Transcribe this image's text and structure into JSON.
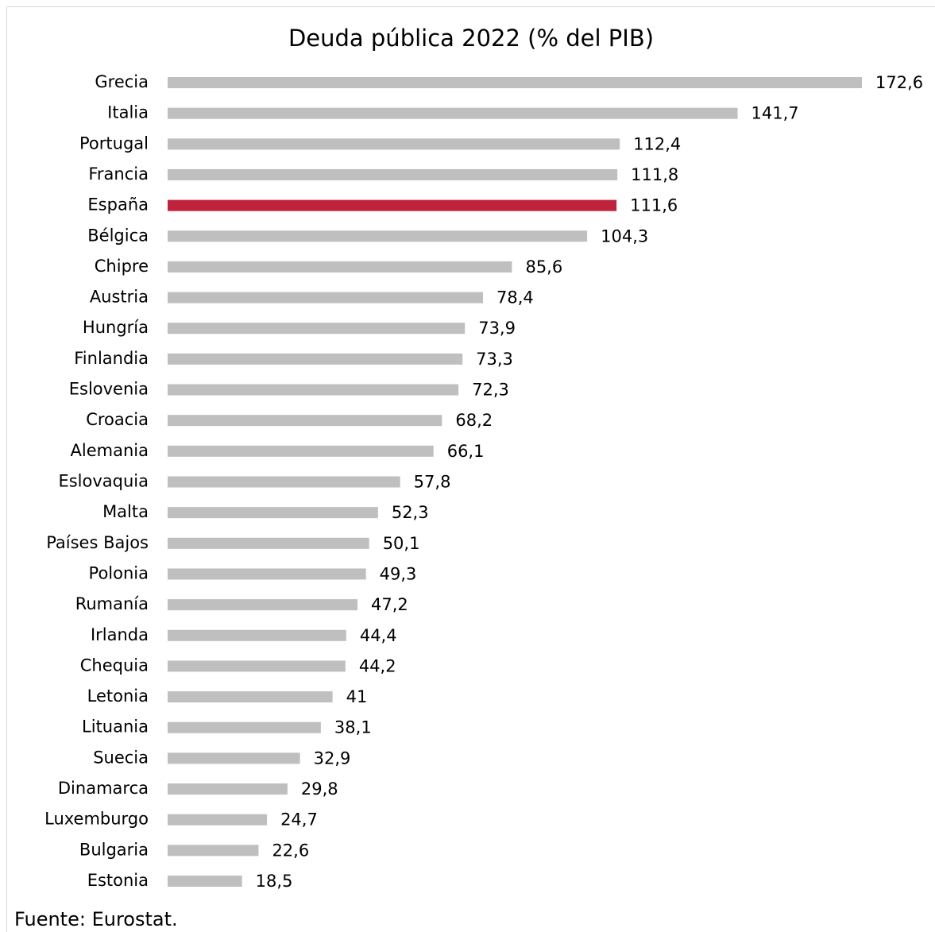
{
  "chart_data": {
    "type": "barh",
    "title": "Deuda pública 2022 (% del PIB)",
    "source": "Fuente: Eurostat.",
    "categories": [
      "Grecia",
      "Italia",
      "Portugal",
      "Francia",
      "España",
      "Bélgica",
      "Chipre",
      "Austria",
      "Hungría",
      "Finlandia",
      "Eslovenia",
      "Croacia",
      "Alemania",
      "Eslovaquia",
      "Malta",
      "Países Bajos",
      "Polonia",
      "Rumanía",
      "Irlanda",
      "Chequia",
      "Letonia",
      "Lituania",
      "Suecia",
      "Dinamarca",
      "Luxemburgo",
      "Bulgaria",
      "Estonia"
    ],
    "values": [
      172.6,
      141.7,
      112.4,
      111.8,
      111.6,
      104.3,
      85.6,
      78.4,
      73.9,
      73.3,
      72.3,
      68.2,
      66.1,
      57.8,
      52.3,
      50.1,
      49.3,
      47.2,
      44.4,
      44.2,
      41,
      38.1,
      32.9,
      29.8,
      24.7,
      22.6,
      18.5
    ],
    "value_labels": [
      "172,6",
      "141,7",
      "112,4",
      "111,8",
      "111,6",
      "104,3",
      "85,6",
      "78,4",
      "73,9",
      "73,3",
      "72,3",
      "68,2",
      "66,1",
      "57,8",
      "52,3",
      "50,1",
      "49,3",
      "47,2",
      "44,4",
      "44,2",
      "41",
      "38,1",
      "32,9",
      "29,8",
      "24,7",
      "22,6",
      "18,5"
    ],
    "colors": [
      "#bfbfbf",
      "#bfbfbf",
      "#bfbfbf",
      "#bfbfbf",
      "#c0223b",
      "#bfbfbf",
      "#bfbfbf",
      "#bfbfbf",
      "#bfbfbf",
      "#bfbfbf",
      "#bfbfbf",
      "#bfbfbf",
      "#bfbfbf",
      "#bfbfbf",
      "#bfbfbf",
      "#bfbfbf",
      "#bfbfbf",
      "#bfbfbf",
      "#bfbfbf",
      "#bfbfbf",
      "#bfbfbf",
      "#bfbfbf",
      "#bfbfbf",
      "#bfbfbf",
      "#bfbfbf",
      "#bfbfbf",
      "#bfbfbf"
    ]
  }
}
